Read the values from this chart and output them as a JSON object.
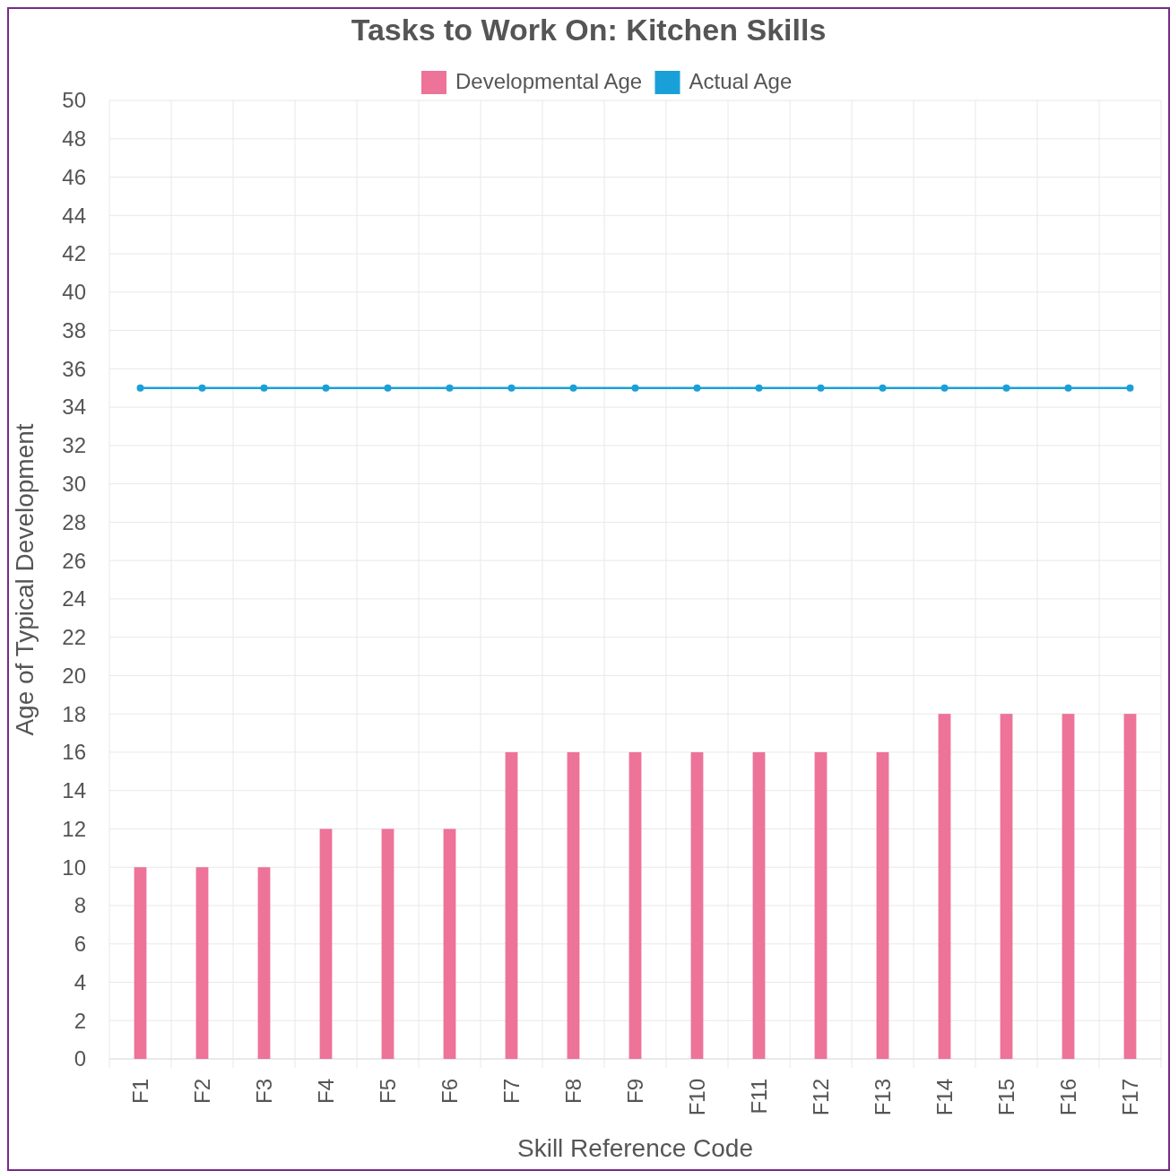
{
  "chart_data": {
    "type": "bar",
    "title": "Tasks to Work On: Kitchen Skills",
    "xlabel": "Skill Reference Code",
    "ylabel": "Age of Typical Development",
    "categories": [
      "F1",
      "F2",
      "F3",
      "F4",
      "F5",
      "F6",
      "F7",
      "F8",
      "F9",
      "F10",
      "F11",
      "F12",
      "F13",
      "F14",
      "F15",
      "F16",
      "F17"
    ],
    "series": [
      {
        "name": "Developmental Age",
        "color": "#ed7399",
        "values": [
          10,
          10,
          10,
          12,
          12,
          12,
          16,
          16,
          16,
          16,
          16,
          16,
          16,
          18,
          18,
          18,
          18
        ]
      },
      {
        "name": "Actual Age",
        "type": "line",
        "color": "#1aa0d8",
        "values": [
          35,
          35,
          35,
          35,
          35,
          35,
          35,
          35,
          35,
          35,
          35,
          35,
          35,
          35,
          35,
          35,
          35
        ]
      }
    ],
    "ylim": [
      0,
      50
    ],
    "yticks": [
      0,
      2,
      4,
      6,
      8,
      10,
      12,
      14,
      16,
      18,
      20,
      22,
      24,
      26,
      28,
      30,
      32,
      34,
      36,
      38,
      40,
      42,
      44,
      46,
      48,
      50
    ],
    "grid": true,
    "legend": "top",
    "marker": "circle",
    "line_style": "solid"
  }
}
